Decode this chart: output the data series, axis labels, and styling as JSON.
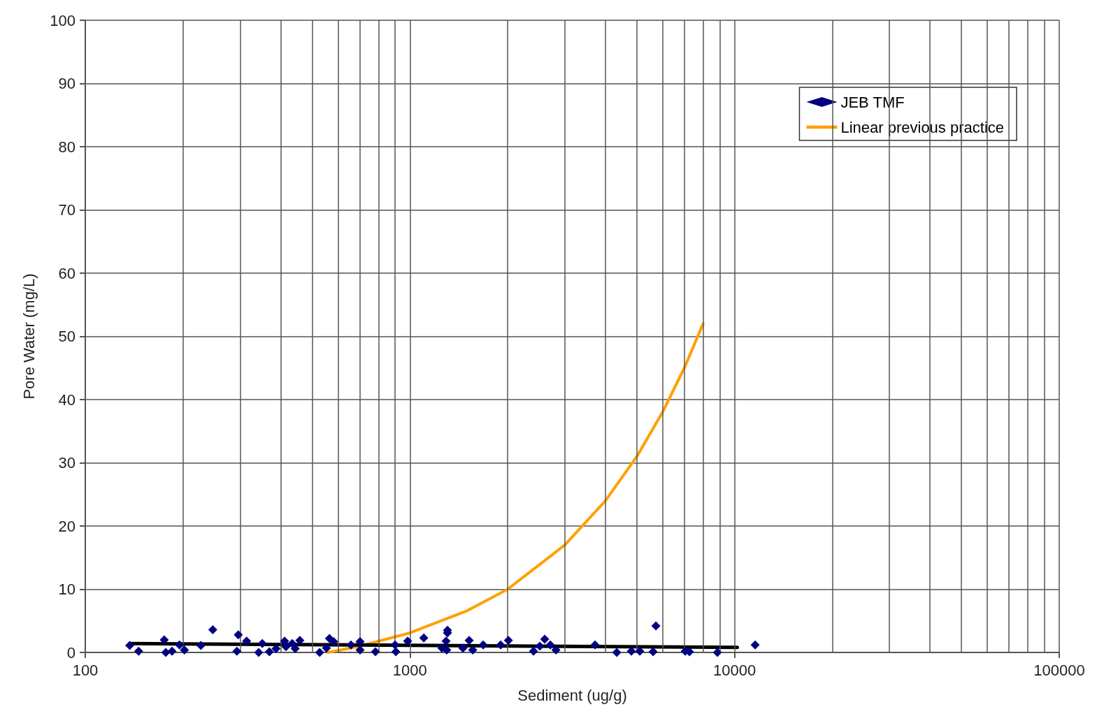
{
  "chart_data": {
    "type": "scatter",
    "xlabel": "Sediment (ug/g)",
    "ylabel": "Pore Water (mg/L)",
    "log": "x",
    "xlim": [
      100,
      100000
    ],
    "ylim": [
      0,
      100
    ],
    "xticks": [
      100,
      {
        "value": 200,
        "label": null
      },
      {
        "value": 300,
        "label": null
      },
      {
        "value": 400,
        "label": null
      },
      {
        "value": 500,
        "label": null
      },
      {
        "value": 600,
        "label": null
      },
      {
        "value": 700,
        "label": null
      },
      {
        "value": 800,
        "label": null
      },
      {
        "value": 900,
        "label": null
      },
      1000,
      {
        "value": 2000,
        "label": null
      },
      {
        "value": 3000,
        "label": null
      },
      {
        "value": 4000,
        "label": null
      },
      {
        "value": 5000,
        "label": null
      },
      {
        "value": 6000,
        "label": null
      },
      {
        "value": 7000,
        "label": null
      },
      {
        "value": 8000,
        "label": null
      },
      {
        "value": 9000,
        "label": null
      },
      10000,
      {
        "value": 20000,
        "label": null
      },
      {
        "value": 30000,
        "label": null
      },
      {
        "value": 40000,
        "label": null
      },
      {
        "value": 50000,
        "label": null
      },
      {
        "value": 60000,
        "label": null
      },
      {
        "value": 70000,
        "label": null
      },
      {
        "value": 80000,
        "label": null
      },
      {
        "value": 90000,
        "label": null
      },
      100000
    ],
    "yticks": [
      0,
      10,
      20,
      30,
      40,
      50,
      60,
      70,
      80,
      90,
      100
    ],
    "grid": true,
    "legend": "top right",
    "marker": "diamond",
    "series": [
      {
        "name": "JEB TMF",
        "color": "#000080",
        "x": [
          137,
          146,
          175,
          177,
          185,
          195,
          202,
          227,
          247,
          293,
          296,
          314,
          342,
          351,
          369,
          387,
          411,
          415,
          434,
          443,
          458,
          527,
          553,
          565,
          582,
          658,
          702,
          702,
          783,
          900,
          905,
          984,
          1103,
          1254,
          1305,
          1305,
          1292,
          1298,
          1456,
          1522,
          1561,
          1681,
          1903,
          2010,
          2402,
          2512,
          2601,
          2706,
          2816,
          3716,
          4335,
          4810,
          5105,
          5723,
          5610,
          7047,
          7259,
          8851,
          11570
        ],
        "values": [
          1.1,
          0.2,
          2.0,
          0,
          0.2,
          1.2,
          0.4,
          1.1,
          3.6,
          0.2,
          2.8,
          1.8,
          0,
          1.4,
          0.1,
          0.6,
          1.8,
          0.9,
          1.4,
          0.6,
          1.9,
          0,
          0.7,
          2.2,
          1.7,
          1.2,
          1.7,
          0.4,
          0.1,
          1.2,
          0.1,
          1.8,
          2.3,
          0.7,
          3.5,
          3.1,
          1.8,
          0.4,
          0.7,
          1.9,
          0.4,
          1.2,
          1.2,
          1.9,
          0.2,
          1.0,
          2.1,
          1.2,
          0.4,
          1.2,
          0,
          0.2,
          0.2,
          4.2,
          0.1,
          0.2,
          0.1,
          0,
          1.2
        ]
      },
      {
        "name": "Linear previous practice",
        "type": "line",
        "marker": "none",
        "color": "#ffa000",
        "x": [
          560,
          700,
          1000,
          1500,
          2000,
          3000,
          4000,
          5000,
          6000,
          7000,
          8000
        ],
        "values": [
          0,
          1,
          3.1,
          6.6,
          10,
          17,
          24,
          31,
          38,
          45,
          52
        ]
      },
      {
        "type": "line",
        "marker": "none",
        "color": "#000000",
        "x": [
          137,
          10200
        ],
        "values": [
          1.4,
          0.8
        ]
      }
    ]
  }
}
